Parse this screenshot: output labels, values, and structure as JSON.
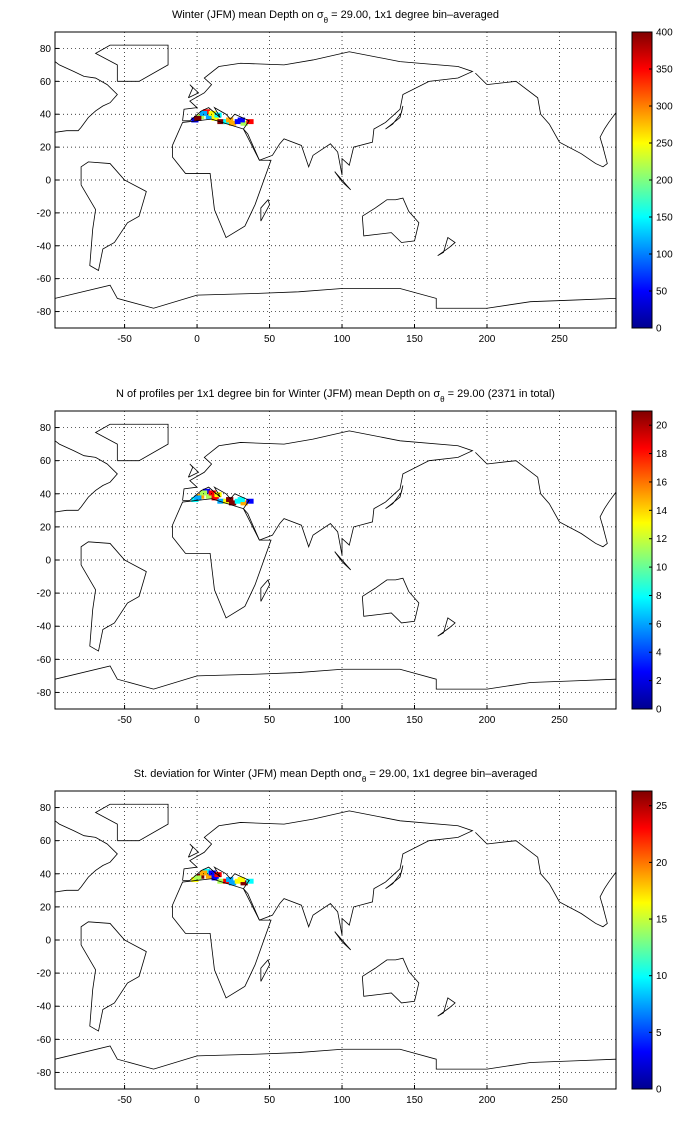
{
  "chart_data": [
    {
      "type": "map",
      "title": [
        "Winter (JFM) mean Depth on σ",
        "θ",
        " = 29.00, 1x1 degree bin–averaged"
      ],
      "xlim": [
        -98,
        289
      ],
      "xticks": [
        -50,
        0,
        50,
        100,
        150,
        200,
        250
      ],
      "ylim": [
        -90,
        90
      ],
      "yticks": [
        -80,
        -60,
        -40,
        -20,
        0,
        20,
        40,
        60,
        80
      ],
      "grid": true,
      "colorbar": {
        "lim": [
          0,
          400
        ],
        "ticks": [
          0,
          50,
          100,
          150,
          200,
          250,
          300,
          350,
          400
        ],
        "colormap": "jet"
      }
    },
    {
      "type": "map",
      "title": [
        "N of profiles per 1x1 degree bin for Winter (JFM) mean Depth on σ",
        "θ",
        " = 29.00 (2371 in total)"
      ],
      "xlim": [
        -98,
        289
      ],
      "xticks": [
        -50,
        0,
        50,
        100,
        150,
        200,
        250
      ],
      "ylim": [
        -90,
        90
      ],
      "yticks": [
        -80,
        -60,
        -40,
        -20,
        0,
        20,
        40,
        60,
        80
      ],
      "grid": true,
      "colorbar": {
        "lim": [
          0,
          21
        ],
        "ticks": [
          0,
          2,
          4,
          6,
          8,
          10,
          12,
          14,
          16,
          18,
          20
        ],
        "colormap": "jet"
      }
    },
    {
      "type": "map",
      "title": [
        "St. deviation for Winter (JFM) mean Depth on",
        "σ",
        "θ",
        " = 29.00, 1x1 degree bin–averaged"
      ],
      "xlim": [
        -98,
        289
      ],
      "xticks": [
        -50,
        0,
        50,
        100,
        150,
        200,
        250
      ],
      "ylim": [
        -90,
        90
      ],
      "yticks": [
        -80,
        -60,
        -40,
        -20,
        0,
        20,
        40,
        60,
        80
      ],
      "grid": true,
      "colorbar": {
        "lim": [
          0,
          26.3
        ],
        "ticks": [
          0,
          5,
          10,
          15,
          20,
          25
        ],
        "colormap": "jet"
      }
    }
  ]
}
